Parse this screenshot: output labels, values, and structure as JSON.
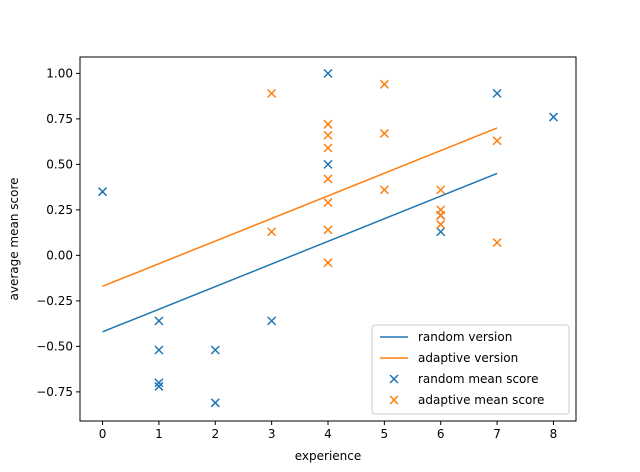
{
  "chart_data": {
    "type": "scatter",
    "title": "",
    "xlabel": "experience",
    "ylabel": "average mean score",
    "xlim": [
      -0.4,
      8.4
    ],
    "ylim": [
      -0.91,
      1.09
    ],
    "xticks": [
      0,
      1,
      2,
      3,
      4,
      5,
      6,
      7,
      8
    ],
    "yticks": [
      -0.75,
      -0.5,
      -0.25,
      0.0,
      0.25,
      0.5,
      0.75,
      1.0
    ],
    "xtick_labels": [
      "0",
      "1",
      "2",
      "3",
      "4",
      "5",
      "6",
      "7",
      "8"
    ],
    "ytick_labels": [
      "−0.75",
      "−0.50",
      "−0.25",
      "0.00",
      "0.25",
      "0.50",
      "0.75",
      "1.00"
    ],
    "grid": false,
    "legend_position": "lower-right",
    "lines": [
      {
        "name": "random version",
        "color": "#1f77b4",
        "x": [
          0,
          7
        ],
        "y": [
          -0.42,
          0.45
        ]
      },
      {
        "name": "adaptive version",
        "color": "#ff7f0e",
        "x": [
          0,
          7
        ],
        "y": [
          -0.17,
          0.7
        ]
      }
    ],
    "series": [
      {
        "name": "random mean score",
        "color": "#1f77b4",
        "marker": "x",
        "points": [
          [
            0,
            0.35
          ],
          [
            1,
            -0.36
          ],
          [
            1,
            -0.52
          ],
          [
            1,
            -0.7
          ],
          [
            1,
            -0.72
          ],
          [
            2,
            -0.52
          ],
          [
            2,
            -0.81
          ],
          [
            3,
            -0.36
          ],
          [
            4,
            1.0
          ],
          [
            4,
            0.5
          ],
          [
            6,
            0.22
          ],
          [
            6,
            0.13
          ],
          [
            7,
            0.89
          ],
          [
            8,
            0.76
          ]
        ]
      },
      {
        "name": "adaptive mean score",
        "color": "#ff7f0e",
        "marker": "x",
        "points": [
          [
            3,
            0.89
          ],
          [
            3,
            0.13
          ],
          [
            4,
            0.72
          ],
          [
            4,
            0.66
          ],
          [
            4,
            0.59
          ],
          [
            4,
            0.42
          ],
          [
            4,
            0.29
          ],
          [
            4,
            0.14
          ],
          [
            4,
            -0.04
          ],
          [
            5,
            0.94
          ],
          [
            5,
            0.67
          ],
          [
            5,
            0.36
          ],
          [
            6,
            0.36
          ],
          [
            6,
            0.25
          ],
          [
            6,
            0.22
          ],
          [
            6,
            0.17
          ],
          [
            7,
            0.63
          ],
          [
            7,
            0.07
          ]
        ]
      }
    ]
  }
}
